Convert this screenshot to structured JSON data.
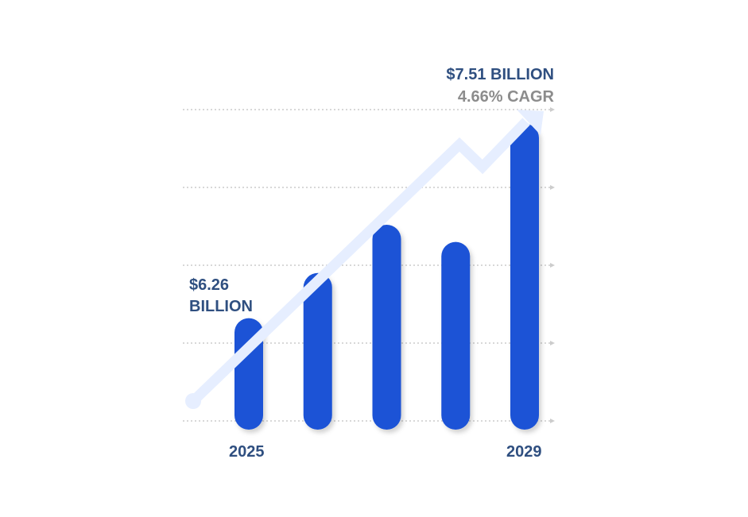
{
  "chart_data": {
    "type": "bar",
    "categories": [
      "2025",
      "",
      "",
      "",
      "2029"
    ],
    "values": [
      6.26,
      6.55,
      6.86,
      6.75,
      7.51
    ],
    "ylim": [
      5.6,
      7.6
    ],
    "grid": true,
    "labels": {
      "start_value": "$6.26",
      "start_unit": "BILLION",
      "end_value": "$7.51 BILLION",
      "cagr": "4.66% CAGR"
    },
    "colors": {
      "bar": "#1a53d6",
      "trend_arrow": "#e6eeff",
      "grid": "#cccccc",
      "value_text": "#2f4f80",
      "cagr_text": "#8c8c8c"
    }
  }
}
